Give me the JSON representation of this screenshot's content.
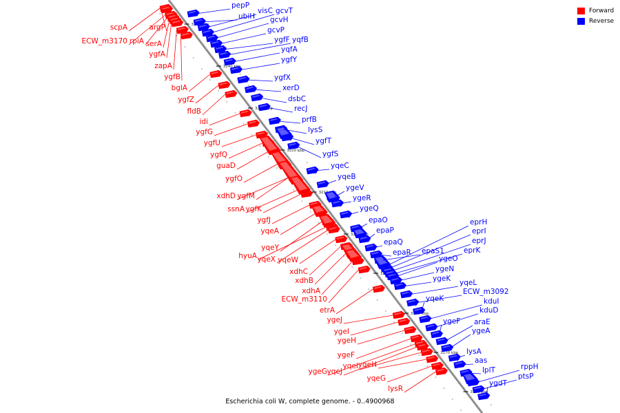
{
  "legend": {
    "forward_label": "Forward",
    "reverse_label": "Reverse",
    "forward_color": "#ff0000",
    "reverse_color": "#0000ff"
  },
  "caption": "Escherichia coli W, complete genome. - 0..4900968",
  "ticks": [
    "3250 kbp",
    "3240 kbp",
    "3230 kbp",
    "3220 kbp",
    "3210 kbp",
    "3200 kbp",
    "3190 kbp",
    "3180 kbp",
    "3170 kbp",
    "3160 kbp"
  ],
  "forward_genes": [
    "scpA",
    "argP",
    "ECW_m3170",
    "rpiA",
    "serA",
    "ygfA",
    "zapA",
    "ygfB",
    "bglA",
    "ygfZ",
    "fldB",
    "idi",
    "ygfG",
    "ygfU",
    "ygfQ",
    "guaD",
    "ygfO",
    "xdhD",
    "ygfM",
    "ssnA",
    "ygfK",
    "ygfJ",
    "yqeA",
    "yqeY",
    "hyuA",
    "yqeX",
    "yqeW",
    "xdhC",
    "xdhB",
    "xdhA",
    "ECW_m3110",
    "etrA",
    "ygeJ",
    "ygeI",
    "ygeH",
    "ygeF",
    "ygeG",
    "yqeJ",
    "yqeI",
    "yqeH",
    "yqeG",
    "lysR"
  ],
  "reverse_genes": [
    "pepP",
    "ubiH",
    "visC",
    "gcvT",
    "gcvH",
    "gcvP",
    "ygfF",
    "yqfB",
    "yqfA",
    "ygfY",
    "ygfX",
    "xerD",
    "dsbC",
    "recJ",
    "prfB",
    "lysS",
    "ygfT",
    "ygfS",
    "yqeC",
    "yqeB",
    "ygeV",
    "ygeR",
    "ygeQ",
    "epaO",
    "epaP",
    "epaQ",
    "epaR",
    "epaS1",
    "eprH",
    "eprI",
    "eprJ",
    "eprK",
    "ygeO",
    "ygeN",
    "ygeK",
    "yqeL",
    "ECW_m3092",
    "yqeK",
    "kduI",
    "kduD",
    "ygeF",
    "araE",
    "ygeA",
    "lysA",
    "aas",
    "lplT",
    "rppH",
    "ptsP",
    "ygdT"
  ]
}
